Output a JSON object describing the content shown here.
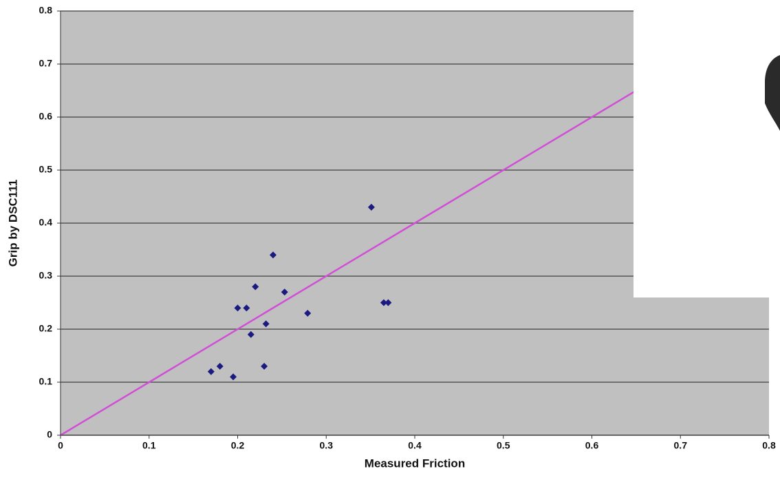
{
  "chart_data": {
    "type": "scatter",
    "xlabel": "Measured Friction",
    "ylabel": "Grip by DSC111",
    "xlim": [
      0,
      0.8
    ],
    "ylim": [
      0,
      0.8
    ],
    "xticks": [
      0,
      0.1,
      0.2,
      0.3,
      0.4,
      0.5,
      0.6,
      0.7,
      0.8
    ],
    "yticks": [
      0,
      0.1,
      0.2,
      0.3,
      0.4,
      0.5,
      0.6,
      0.7,
      0.8
    ],
    "grid": true,
    "points": {
      "color": "#1a1a80",
      "x": [
        0.17,
        0.18,
        0.195,
        0.2,
        0.21,
        0.215,
        0.22,
        0.23,
        0.232,
        0.24,
        0.253,
        0.279,
        0.351,
        0.365,
        0.37
      ],
      "y": [
        0.12,
        0.13,
        0.11,
        0.24,
        0.24,
        0.19,
        0.28,
        0.13,
        0.21,
        0.34,
        0.27,
        0.23,
        0.43,
        0.25,
        0.25
      ]
    },
    "line": {
      "color": "#d14fd6",
      "x": [
        0,
        0.8
      ],
      "y": [
        0,
        0.8
      ]
    }
  }
}
